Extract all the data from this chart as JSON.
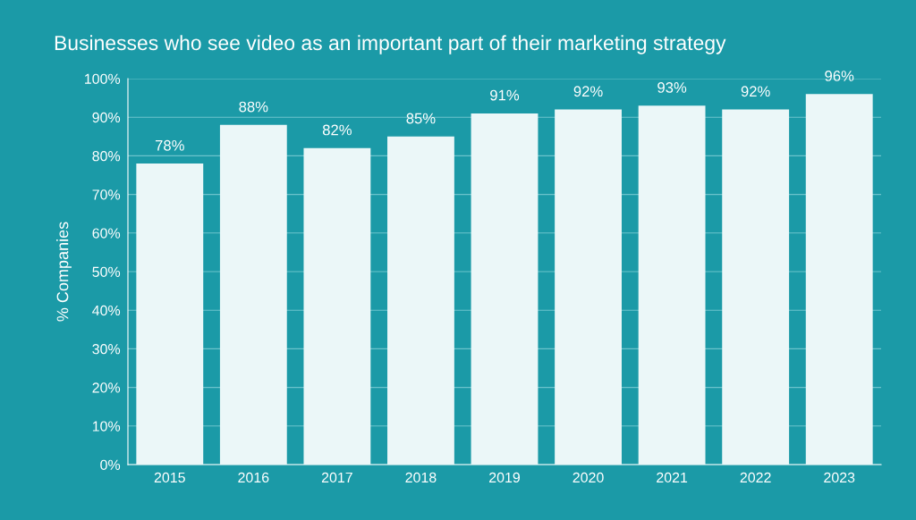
{
  "chart_data": {
    "type": "bar",
    "title": "Businesses who see video as an important part of their marketing strategy",
    "ylabel": "% Companies",
    "categories": [
      "2015",
      "2016",
      "2017",
      "2018",
      "2019",
      "2020",
      "2021",
      "2022",
      "2023"
    ],
    "values": [
      78,
      88,
      82,
      85,
      91,
      92,
      93,
      92,
      96
    ],
    "value_labels": [
      "78%",
      "88%",
      "82%",
      "85%",
      "91%",
      "92%",
      "93%",
      "92%",
      "96%"
    ],
    "color": "#ebf7f8",
    "ylim": [
      0,
      100
    ],
    "yticks": [
      {
        "value": 0,
        "label": "0%"
      },
      {
        "value": 10,
        "label": "10%"
      },
      {
        "value": 20,
        "label": "20%"
      },
      {
        "value": 30,
        "label": "30%"
      },
      {
        "value": 40,
        "label": "40%"
      },
      {
        "value": 50,
        "label": "50%"
      },
      {
        "value": 60,
        "label": "60%"
      },
      {
        "value": 70,
        "label": "70%"
      },
      {
        "value": 80,
        "label": "80%"
      },
      {
        "value": 90,
        "label": "90%"
      },
      {
        "value": 100,
        "label": "100%"
      }
    ],
    "grid": "y"
  }
}
